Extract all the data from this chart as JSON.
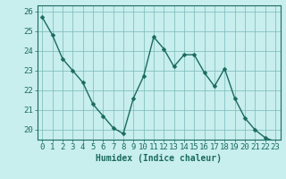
{
  "x": [
    0,
    1,
    2,
    3,
    4,
    5,
    6,
    7,
    8,
    9,
    10,
    11,
    12,
    13,
    14,
    15,
    16,
    17,
    18,
    19,
    20,
    21,
    22,
    23
  ],
  "y": [
    25.7,
    24.8,
    23.6,
    23.0,
    22.4,
    21.3,
    20.7,
    20.1,
    19.8,
    21.6,
    22.7,
    24.7,
    24.1,
    23.2,
    23.8,
    23.8,
    22.9,
    22.2,
    23.1,
    21.6,
    20.6,
    20.0,
    19.6,
    19.4
  ],
  "line_color": "#1a6b5e",
  "marker_color": "#1a6b5e",
  "bg_color": "#c8eeee",
  "grid_color": "#7ab8b8",
  "axis_color": "#1a6b5e",
  "xlabel": "Humidex (Indice chaleur)",
  "ylim": [
    19.5,
    26.3
  ],
  "xlim": [
    -0.5,
    23.5
  ],
  "yticks": [
    20,
    21,
    22,
    23,
    24,
    25,
    26
  ],
  "xticks": [
    0,
    1,
    2,
    3,
    4,
    5,
    6,
    7,
    8,
    9,
    10,
    11,
    12,
    13,
    14,
    15,
    16,
    17,
    18,
    19,
    20,
    21,
    22,
    23
  ],
  "xlabel_fontsize": 7,
  "tick_fontsize": 6.5,
  "marker_size": 2.5,
  "line_width": 1.0
}
